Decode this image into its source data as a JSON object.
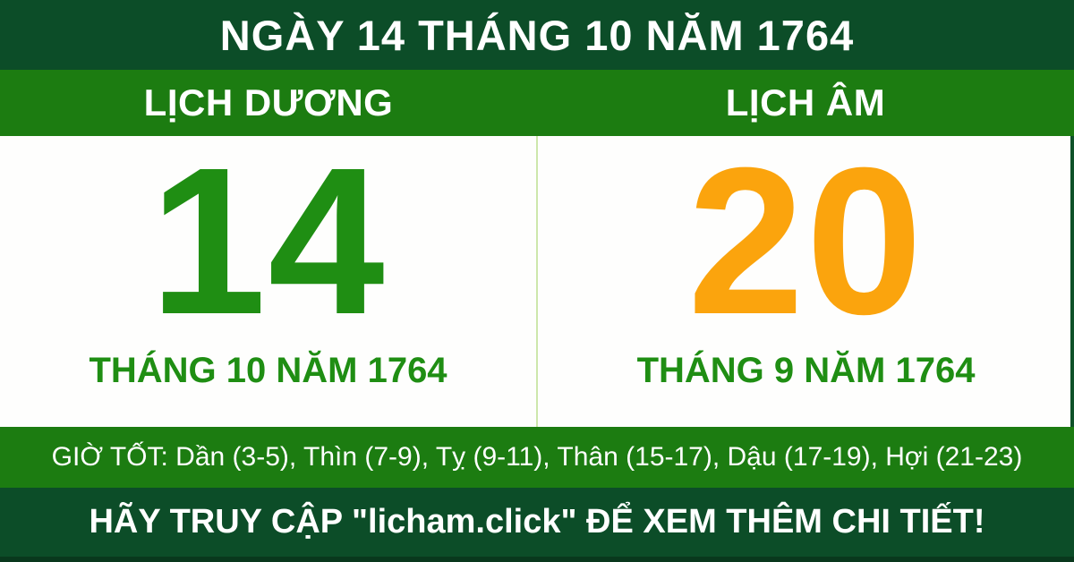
{
  "header": {
    "title": "NGÀY 14 THÁNG 10 NĂM 1764"
  },
  "columns": {
    "solar": {
      "label": "LỊCH DƯƠNG",
      "day": "14",
      "month_year": "THÁNG 10 NĂM 1764"
    },
    "lunar": {
      "label": "LỊCH ÂM",
      "day": "20",
      "month_year": "THÁNG 9 NĂM 1764"
    }
  },
  "good_hours": {
    "text": "GIỜ TỐT: Dần (3-5), Thìn (7-9), Tỵ (9-11), Thân (15-17), Dậu (17-19), Hợi (21-23)"
  },
  "footer": {
    "text": "HÃY TRUY CẬP \"licham.click\" ĐỂ XEM THÊM CHI TIẾT!"
  },
  "colors": {
    "dark_green": "#0C4D28",
    "bright_green": "#1C7C11",
    "text_green": "#1F8E13",
    "lunar_orange": "#FBA40D",
    "divider_pale_green": "#CDE7AC",
    "footer_edge_green": "#09381D",
    "panel_white": "#FEFEFD",
    "text_white": "#FFFFFF"
  }
}
